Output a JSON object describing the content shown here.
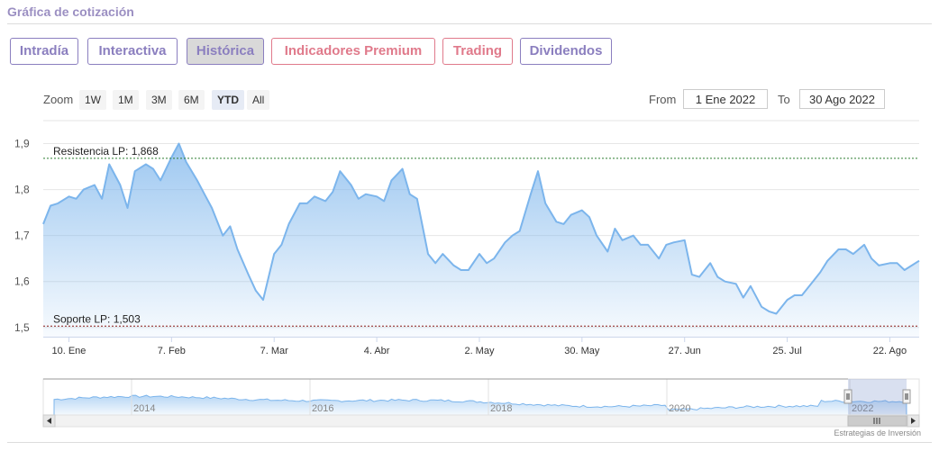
{
  "header": {
    "title": "Gráfica de cotización"
  },
  "tabs": [
    {
      "label": "Intradía",
      "style": "purple"
    },
    {
      "label": "Interactiva",
      "style": "purple"
    },
    {
      "label": "Histórica",
      "style": "active"
    },
    {
      "label": "Indicadores Premium",
      "style": "pink"
    },
    {
      "label": "Trading",
      "style": "pink"
    },
    {
      "label": "Dividendos",
      "style": "purple"
    }
  ],
  "zoom": {
    "label": "Zoom",
    "buttons": [
      "1W",
      "1M",
      "3M",
      "6M",
      "YTD",
      "All"
    ],
    "active": "YTD"
  },
  "range": {
    "from_label": "From",
    "from_value": "1 Ene 2022",
    "to_label": "To",
    "to_value": "30 Ago 2022"
  },
  "colors": {
    "line": "#7cb5ec",
    "resistance": "#2e7d32",
    "support": "#8b1a1a",
    "tab_purple": "#8b7fbf",
    "tab_pink": "#e07a8b"
  },
  "chart_data": {
    "type": "area",
    "xlim": [
      "2022-01-03",
      "2022-08-30"
    ],
    "ylim": [
      1.48,
      1.95
    ],
    "y_ticks": [
      1.5,
      1.6,
      1.7,
      1.8,
      1.9
    ],
    "y_tick_labels": [
      "1,5",
      "1,6",
      "1,7",
      "1,8",
      "1,9"
    ],
    "x_ticks": [
      {
        "date": "2022-01-10",
        "label": "10. Ene"
      },
      {
        "date": "2022-02-07",
        "label": "7. Feb"
      },
      {
        "date": "2022-03-07",
        "label": "7. Mar"
      },
      {
        "date": "2022-04-04",
        "label": "4. Abr"
      },
      {
        "date": "2022-05-02",
        "label": "2. May"
      },
      {
        "date": "2022-05-30",
        "label": "30. May"
      },
      {
        "date": "2022-06-27",
        "label": "27. Jun"
      },
      {
        "date": "2022-07-25",
        "label": "25. Jul"
      },
      {
        "date": "2022-08-22",
        "label": "22. Ago"
      }
    ],
    "grid": true,
    "series": [
      {
        "x": [
          "2022-01-03",
          "2022-01-05",
          "2022-01-07",
          "2022-01-10",
          "2022-01-12",
          "2022-01-14",
          "2022-01-17",
          "2022-01-19",
          "2022-01-21",
          "2022-01-24",
          "2022-01-26",
          "2022-01-28",
          "2022-01-31",
          "2022-02-02",
          "2022-02-04",
          "2022-02-07",
          "2022-02-09",
          "2022-02-11",
          "2022-02-14",
          "2022-02-16",
          "2022-02-18",
          "2022-02-21",
          "2022-02-23",
          "2022-02-25",
          "2022-02-28",
          "2022-03-02",
          "2022-03-04",
          "2022-03-07",
          "2022-03-09",
          "2022-03-11",
          "2022-03-14",
          "2022-03-16",
          "2022-03-18",
          "2022-03-21",
          "2022-03-23",
          "2022-03-25",
          "2022-03-28",
          "2022-03-30",
          "2022-04-01",
          "2022-04-04",
          "2022-04-06",
          "2022-04-08",
          "2022-04-11",
          "2022-04-13",
          "2022-04-15",
          "2022-04-18",
          "2022-04-20",
          "2022-04-22",
          "2022-04-25",
          "2022-04-27",
          "2022-04-29",
          "2022-05-02",
          "2022-05-04",
          "2022-05-06",
          "2022-05-09",
          "2022-05-11",
          "2022-05-13",
          "2022-05-16",
          "2022-05-18",
          "2022-05-20",
          "2022-05-23",
          "2022-05-25",
          "2022-05-27",
          "2022-05-30",
          "2022-06-01",
          "2022-06-03",
          "2022-06-06",
          "2022-06-08",
          "2022-06-10",
          "2022-06-13",
          "2022-06-15",
          "2022-06-17",
          "2022-06-20",
          "2022-06-22",
          "2022-06-24",
          "2022-06-27",
          "2022-06-29",
          "2022-07-01",
          "2022-07-04",
          "2022-07-06",
          "2022-07-08",
          "2022-07-11",
          "2022-07-13",
          "2022-07-15",
          "2022-07-18",
          "2022-07-20",
          "2022-07-22",
          "2022-07-25",
          "2022-07-27",
          "2022-07-29",
          "2022-08-01",
          "2022-08-03",
          "2022-08-05",
          "2022-08-08",
          "2022-08-10",
          "2022-08-12",
          "2022-08-15",
          "2022-08-17",
          "2022-08-19",
          "2022-08-22",
          "2022-08-24",
          "2022-08-26",
          "2022-08-30"
        ],
        "y": [
          1.725,
          1.765,
          1.77,
          1.785,
          1.78,
          1.8,
          1.81,
          1.78,
          1.855,
          1.81,
          1.76,
          1.84,
          1.855,
          1.845,
          1.82,
          1.87,
          1.9,
          1.86,
          1.82,
          1.79,
          1.76,
          1.7,
          1.72,
          1.67,
          1.615,
          1.58,
          1.56,
          1.66,
          1.68,
          1.725,
          1.77,
          1.77,
          1.785,
          1.775,
          1.795,
          1.84,
          1.81,
          1.78,
          1.79,
          1.785,
          1.775,
          1.82,
          1.845,
          1.79,
          1.78,
          1.66,
          1.64,
          1.66,
          1.635,
          1.625,
          1.625,
          1.66,
          1.64,
          1.65,
          1.685,
          1.7,
          1.71,
          1.79,
          1.84,
          1.77,
          1.73,
          1.725,
          1.745,
          1.755,
          1.74,
          1.7,
          1.665,
          1.715,
          1.69,
          1.7,
          1.68,
          1.68,
          1.65,
          1.68,
          1.685,
          1.69,
          1.615,
          1.61,
          1.64,
          1.61,
          1.6,
          1.595,
          1.565,
          1.59,
          1.545,
          1.535,
          1.53,
          1.56,
          1.57,
          1.57,
          1.6,
          1.62,
          1.645,
          1.67,
          1.67,
          1.66,
          1.68,
          1.65,
          1.635,
          1.64,
          1.64,
          1.625,
          1.645
        ]
      }
    ],
    "annotations": [
      {
        "label": "Resistencia LP: 1,868",
        "y": 1.868
      },
      {
        "label": "Soporte LP: 1,503",
        "y": 1.503
      }
    ],
    "navigator": {
      "labels": [
        "2014",
        "2016",
        "2018",
        "2020",
        "2022"
      ]
    }
  },
  "footer": {
    "credit": "Estrategias de Inversión"
  }
}
